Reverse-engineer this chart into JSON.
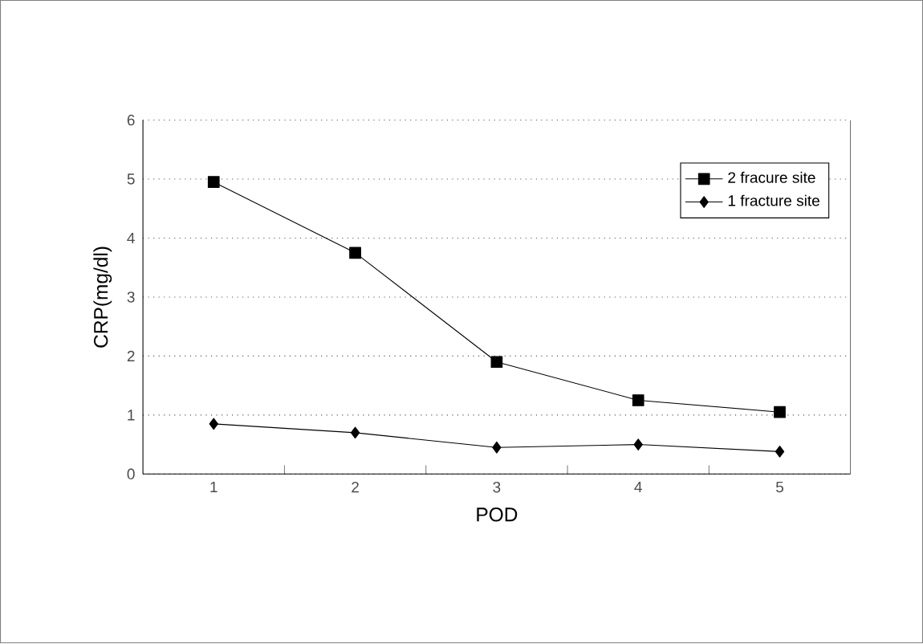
{
  "chart_data": {
    "type": "line",
    "xlabel": "POD",
    "ylabel": "CRP(mg/dl)",
    "categories": [
      "1",
      "2",
      "3",
      "4",
      "5"
    ],
    "series": [
      {
        "name": "2 fracure site",
        "color": "#000000",
        "marker": "square",
        "values": [
          4.95,
          3.75,
          1.9,
          1.25,
          1.05
        ]
      },
      {
        "name": "1 fracture site",
        "color": "#000000",
        "marker": "diamond",
        "values": [
          0.85,
          0.7,
          0.45,
          0.5,
          0.38
        ]
      }
    ],
    "ylim": [
      0,
      6
    ],
    "yticks": [
      0,
      1,
      2,
      3,
      4,
      5,
      6
    ],
    "grid": "y",
    "legend": "top right",
    "line_style": "solid"
  }
}
